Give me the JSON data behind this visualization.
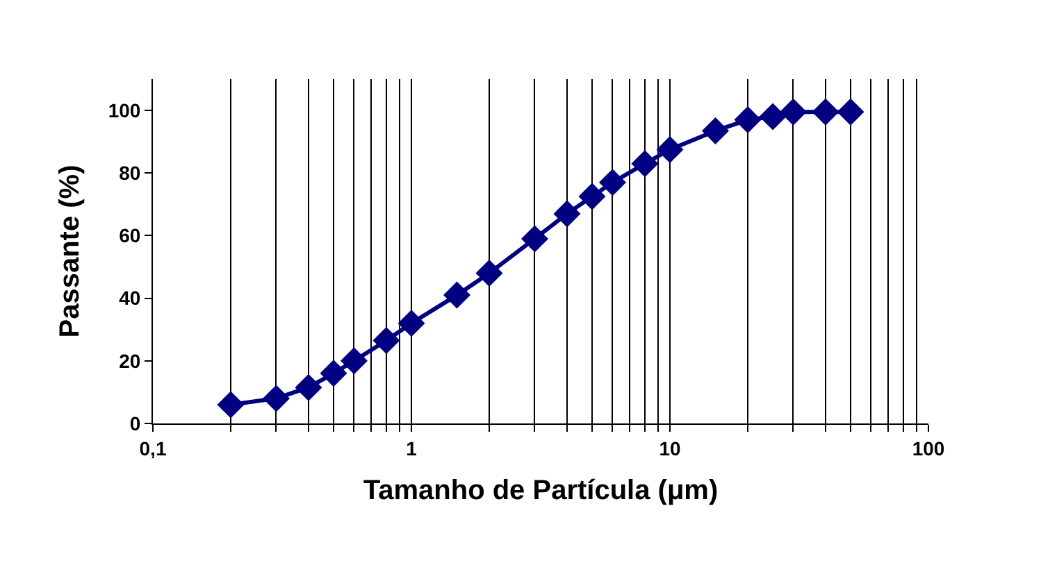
{
  "chart_data": {
    "type": "line",
    "xlabel": "Tamanho de Partícula (μm)",
    "ylabel": "Passante (%)",
    "x": [
      0.2,
      0.3,
      0.4,
      0.5,
      0.6,
      0.8,
      1,
      1.5,
      2,
      3,
      4,
      5,
      6,
      8,
      10,
      15,
      20,
      25,
      30,
      40,
      50
    ],
    "series": [
      {
        "color": "#000080",
        "values": [
          6,
          8,
          11.5,
          16,
          20,
          26.5,
          32,
          41,
          48,
          59,
          67,
          72.5,
          77,
          83,
          87.5,
          93.5,
          97,
          98,
          99.5,
          99.5,
          99.5
        ]
      }
    ],
    "log": "x",
    "xlim": [
      0.1,
      100
    ],
    "ylim": [
      0,
      110
    ],
    "xticks": [
      {
        "value": 0.1,
        "label": "0,1"
      },
      {
        "value": 0.2,
        "label": null
      },
      {
        "value": 0.3,
        "label": null
      },
      {
        "value": 0.4,
        "label": null
      },
      {
        "value": 0.5,
        "label": null
      },
      {
        "value": 0.6,
        "label": null
      },
      {
        "value": 0.7,
        "label": null
      },
      {
        "value": 0.8,
        "label": null
      },
      {
        "value": 0.9,
        "label": null
      },
      1,
      {
        "value": 2,
        "label": null
      },
      {
        "value": 3,
        "label": null
      },
      {
        "value": 4,
        "label": null
      },
      {
        "value": 5,
        "label": null
      },
      {
        "value": 6,
        "label": null
      },
      {
        "value": 7,
        "label": null
      },
      {
        "value": 8,
        "label": null
      },
      {
        "value": 9,
        "label": null
      },
      10,
      {
        "value": 20,
        "label": null
      },
      {
        "value": 30,
        "label": null
      },
      {
        "value": 40,
        "label": null
      },
      {
        "value": 50,
        "label": null
      },
      {
        "value": 60,
        "label": null
      },
      {
        "value": 70,
        "label": null
      },
      {
        "value": 80,
        "label": null
      },
      {
        "value": 90,
        "label": null
      },
      100
    ],
    "yticks": [
      0,
      20,
      40,
      60,
      80,
      100
    ],
    "grid": "x",
    "legend": false,
    "marker": "diamond",
    "line_style": "solid"
  }
}
